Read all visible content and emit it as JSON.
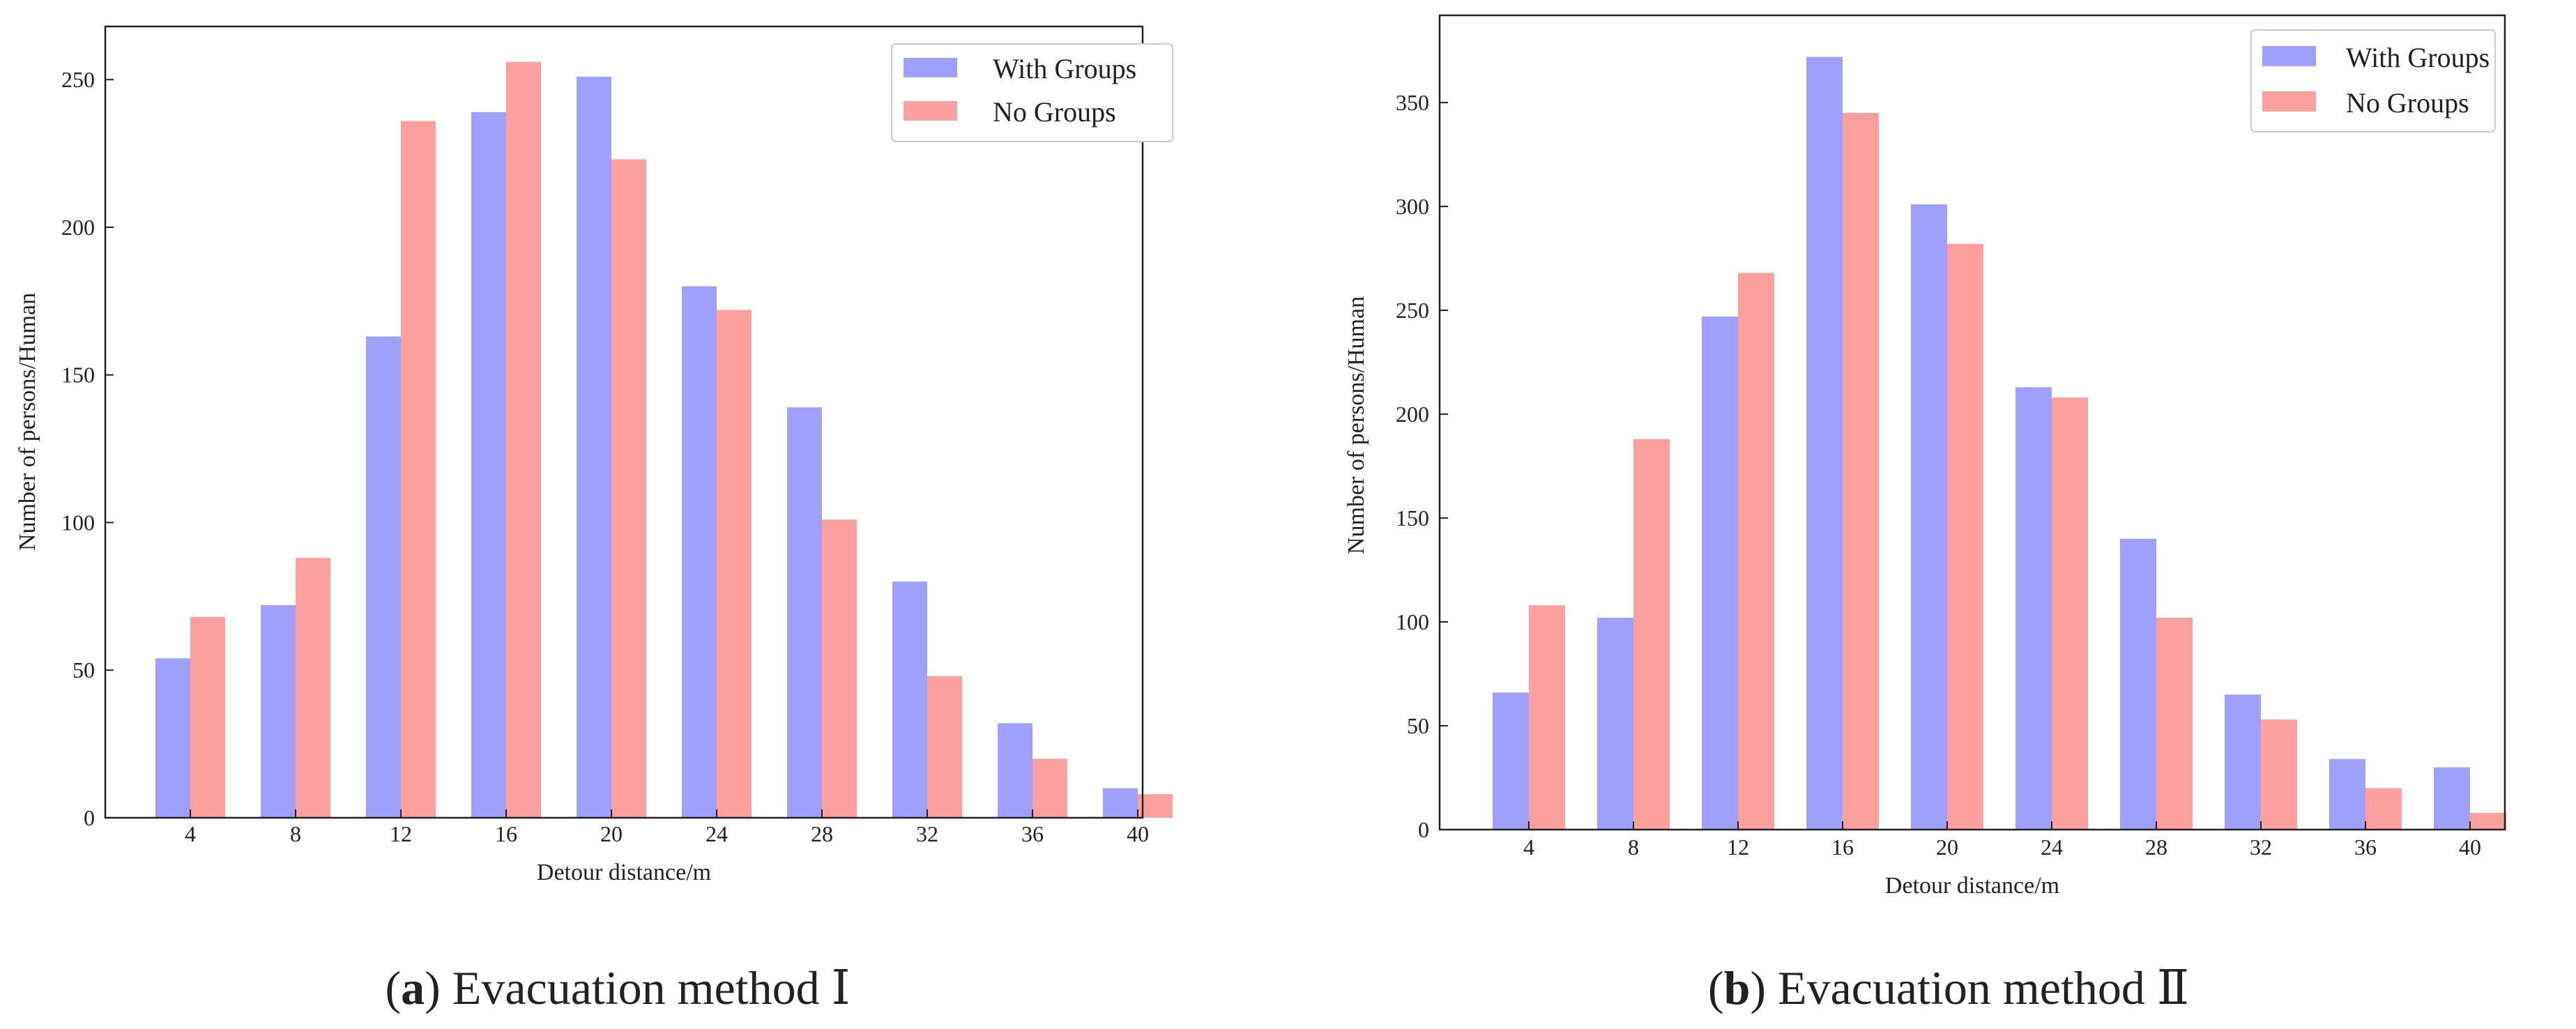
{
  "colors": {
    "with_groups": "#9f9ffc",
    "no_groups": "#fc9f9f",
    "axis": "#222222"
  },
  "chart_data": [
    {
      "type": "bar",
      "title": "",
      "xlabel": "Detour distance/m",
      "ylabel": "Number of persons/Human",
      "categories": [
        "4",
        "8",
        "12",
        "16",
        "20",
        "24",
        "28",
        "32",
        "36",
        "40"
      ],
      "yticks": [
        "0",
        "50",
        "100",
        "150",
        "200",
        "250"
      ],
      "ylim": [
        0,
        268
      ],
      "legend_position": "top-right",
      "series": [
        {
          "name": "With Groups",
          "values": [
            54,
            72,
            163,
            239,
            251,
            180,
            139,
            80,
            32,
            10
          ]
        },
        {
          "name": "No Groups",
          "values": [
            68,
            88,
            236,
            256,
            223,
            172,
            101,
            48,
            20,
            8
          ]
        }
      ],
      "caption": {
        "letter": "a",
        "text": ") Evacuation method Ⅰ"
      }
    },
    {
      "type": "bar",
      "title": "",
      "xlabel": "Detour distance/m",
      "ylabel": "Number of persons/Human",
      "categories": [
        "4",
        "8",
        "12",
        "16",
        "20",
        "24",
        "28",
        "32",
        "36",
        "40"
      ],
      "yticks": [
        "0",
        "50",
        "100",
        "150",
        "200",
        "250",
        "300",
        "350"
      ],
      "ylim": [
        0,
        392
      ],
      "legend_position": "top-right",
      "series": [
        {
          "name": "With Groups",
          "values": [
            66,
            102,
            247,
            372,
            301,
            213,
            140,
            65,
            34,
            30
          ]
        },
        {
          "name": "No Groups",
          "values": [
            108,
            188,
            268,
            345,
            282,
            208,
            102,
            53,
            20,
            8
          ]
        }
      ],
      "caption": {
        "letter": "b",
        "text": ") Evacuation method Ⅱ"
      }
    }
  ]
}
